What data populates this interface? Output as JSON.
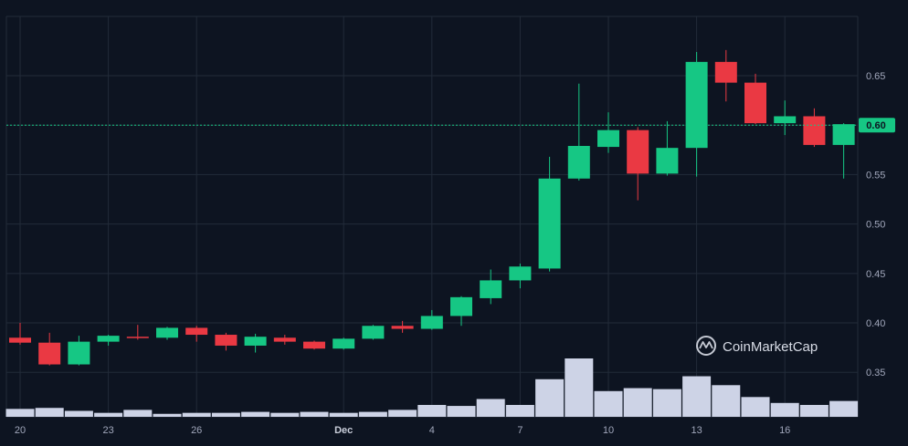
{
  "chart_data": {
    "type": "candlestick",
    "y_ticks": [
      0.35,
      0.4,
      0.45,
      0.5,
      0.55,
      0.6,
      0.65
    ],
    "y_tick_labels": [
      "0.35",
      "0.40",
      "0.45",
      "0.50",
      "0.55",
      "0.60",
      "0.65"
    ],
    "ylim": [
      0.305,
      0.71
    ],
    "current_price": 0.6,
    "current_price_label": "0.60",
    "x_ticks": [
      {
        "index": 0,
        "label": "20",
        "bold": false
      },
      {
        "index": 3,
        "label": "23",
        "bold": false
      },
      {
        "index": 6,
        "label": "26",
        "bold": false
      },
      {
        "index": 11,
        "label": "Dec",
        "bold": true
      },
      {
        "index": 14,
        "label": "4",
        "bold": false
      },
      {
        "index": 17,
        "label": "7",
        "bold": false
      },
      {
        "index": 20,
        "label": "10",
        "bold": false
      },
      {
        "index": 23,
        "label": "13",
        "bold": false
      },
      {
        "index": 26,
        "label": "16",
        "bold": false
      }
    ],
    "candles": [
      {
        "o": 0.385,
        "h": 0.4,
        "l": 0.378,
        "c": 0.38
      },
      {
        "o": 0.38,
        "h": 0.39,
        "l": 0.357,
        "c": 0.358
      },
      {
        "o": 0.358,
        "h": 0.387,
        "l": 0.357,
        "c": 0.381
      },
      {
        "o": 0.381,
        "h": 0.388,
        "l": 0.377,
        "c": 0.387
      },
      {
        "o": 0.386,
        "h": 0.398,
        "l": 0.383,
        "c": 0.385
      },
      {
        "o": 0.385,
        "h": 0.396,
        "l": 0.383,
        "c": 0.395
      },
      {
        "o": 0.395,
        "h": 0.397,
        "l": 0.381,
        "c": 0.388
      },
      {
        "o": 0.388,
        "h": 0.39,
        "l": 0.372,
        "c": 0.377
      },
      {
        "o": 0.377,
        "h": 0.389,
        "l": 0.37,
        "c": 0.386
      },
      {
        "o": 0.385,
        "h": 0.388,
        "l": 0.378,
        "c": 0.381
      },
      {
        "o": 0.381,
        "h": 0.382,
        "l": 0.373,
        "c": 0.374
      },
      {
        "o": 0.374,
        "h": 0.385,
        "l": 0.373,
        "c": 0.384
      },
      {
        "o": 0.384,
        "h": 0.398,
        "l": 0.383,
        "c": 0.397
      },
      {
        "o": 0.397,
        "h": 0.402,
        "l": 0.39,
        "c": 0.394
      },
      {
        "o": 0.394,
        "h": 0.413,
        "l": 0.393,
        "c": 0.407
      },
      {
        "o": 0.407,
        "h": 0.427,
        "l": 0.397,
        "c": 0.426
      },
      {
        "o": 0.425,
        "h": 0.454,
        "l": 0.419,
        "c": 0.443
      },
      {
        "o": 0.443,
        "h": 0.46,
        "l": 0.435,
        "c": 0.457
      },
      {
        "o": 0.455,
        "h": 0.568,
        "l": 0.452,
        "c": 0.546
      },
      {
        "o": 0.546,
        "h": 0.642,
        "l": 0.544,
        "c": 0.579
      },
      {
        "o": 0.578,
        "h": 0.613,
        "l": 0.572,
        "c": 0.595
      },
      {
        "o": 0.595,
        "h": 0.598,
        "l": 0.524,
        "c": 0.551
      },
      {
        "o": 0.551,
        "h": 0.604,
        "l": 0.549,
        "c": 0.577
      },
      {
        "o": 0.577,
        "h": 0.674,
        "l": 0.548,
        "c": 0.664
      },
      {
        "o": 0.664,
        "h": 0.676,
        "l": 0.624,
        "c": 0.643
      },
      {
        "o": 0.643,
        "h": 0.652,
        "l": 0.601,
        "c": 0.602
      },
      {
        "o": 0.602,
        "h": 0.625,
        "l": 0.59,
        "c": 0.609
      },
      {
        "o": 0.609,
        "h": 0.617,
        "l": 0.578,
        "c": 0.58
      },
      {
        "o": 0.58,
        "h": 0.602,
        "l": 0.546,
        "c": 0.601
      }
    ],
    "volume": [
      8,
      9,
      6,
      4,
      7,
      3,
      4,
      4,
      5,
      4,
      5,
      4,
      5,
      7,
      12,
      11,
      18,
      12,
      38,
      59,
      26,
      29,
      28,
      41,
      32,
      20,
      14,
      12,
      16
    ],
    "volume_max": 59,
    "grid": true,
    "watermark": "CoinMarketCap",
    "colors": {
      "up": "#16c784",
      "down": "#ea3943",
      "volume": "#cdd3e6",
      "grid": "#222b39",
      "price_line": "#16c784",
      "background": "#0d1421"
    }
  }
}
